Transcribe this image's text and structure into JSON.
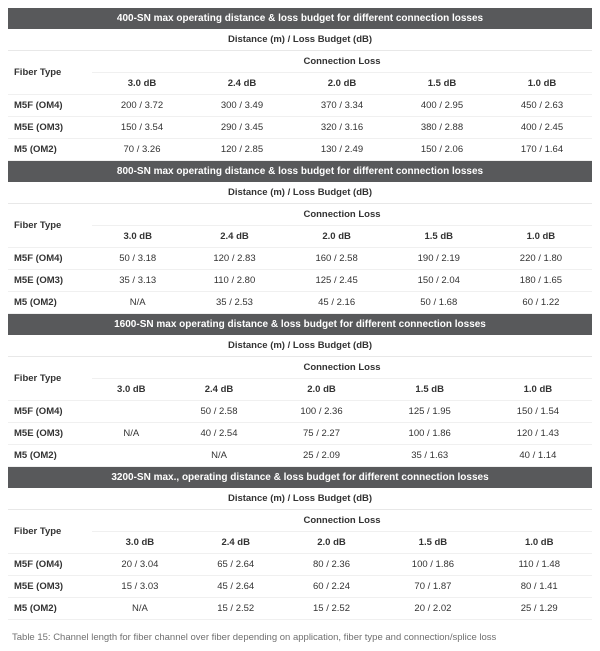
{
  "colors": {
    "section_bg": "#58595b",
    "section_fg": "#ffffff",
    "row_border": "#f0f0f0",
    "caption_color": "#707070"
  },
  "common": {
    "subtitle": "Distance (m) / Loss Budget (dB)",
    "fiber_type_label": "Fiber Type",
    "connection_loss_label": "Connection Loss",
    "col_headers": [
      "3.0 dB",
      "2.4 dB",
      "2.0 dB",
      "1.5 dB",
      "1.0 dB"
    ],
    "fiber_types": [
      "M5F (OM4)",
      "M5E (OM3)",
      "M5 (OM2)"
    ]
  },
  "sections": [
    {
      "title": "400-SN max operating distance & loss budget for different connection losses",
      "rows": [
        [
          "200 / 3.72",
          "300 / 3.49",
          "370 / 3.34",
          "400 / 2.95",
          "450 / 2.63"
        ],
        [
          "150 / 3.54",
          "290 / 3.45",
          "320 / 3.16",
          "380 / 2.88",
          "400 / 2.45"
        ],
        [
          "70 / 3.26",
          "120 / 2.85",
          "130 / 2.49",
          "150 / 2.06",
          "170 / 1.64"
        ]
      ]
    },
    {
      "title": "800-SN max operating distance & loss budget for different connection losses",
      "rows": [
        [
          "50 / 3.18",
          "120 / 2.83",
          "160 / 2.58",
          "190 / 2.19",
          "220 / 1.80"
        ],
        [
          "35 / 3.13",
          "110 / 2.80",
          "125 / 2.45",
          "150 / 2.04",
          "180 / 1.65"
        ],
        [
          "N/A",
          "35 / 2.53",
          "45 / 2.16",
          "50 / 1.68",
          "60 / 1.22"
        ]
      ]
    },
    {
      "title": "1600-SN max operating distance & loss budget for different connection losses",
      "rows": [
        [
          "",
          "50 / 2.58",
          "100 / 2.36",
          "125 / 1.95",
          "150 / 1.54"
        ],
        [
          "N/A",
          "40 / 2.54",
          "75 / 2.27",
          "100 / 1.86",
          "120 / 1.43"
        ],
        [
          "",
          "N/A",
          "25 / 2.09",
          "35 / 1.63",
          "40 / 1.14"
        ]
      ]
    },
    {
      "title": "3200-SN max., operating distance & loss budget for different connection losses",
      "rows": [
        [
          "20 / 3.04",
          "65 / 2.64",
          "80 / 2.36",
          "100 / 1.86",
          "110 / 1.48"
        ],
        [
          "15 / 3.03",
          "45 / 2.64",
          "60 / 2.24",
          "70 / 1.87",
          "80 / 1.41"
        ],
        [
          "N/A",
          "15 / 2.52",
          "15 / 2.52",
          "20 / 2.02",
          "25 / 1.29"
        ]
      ]
    }
  ],
  "caption": "Table 15: Channel length for fiber channel over fiber depending on application, fiber type and connection/splice loss"
}
